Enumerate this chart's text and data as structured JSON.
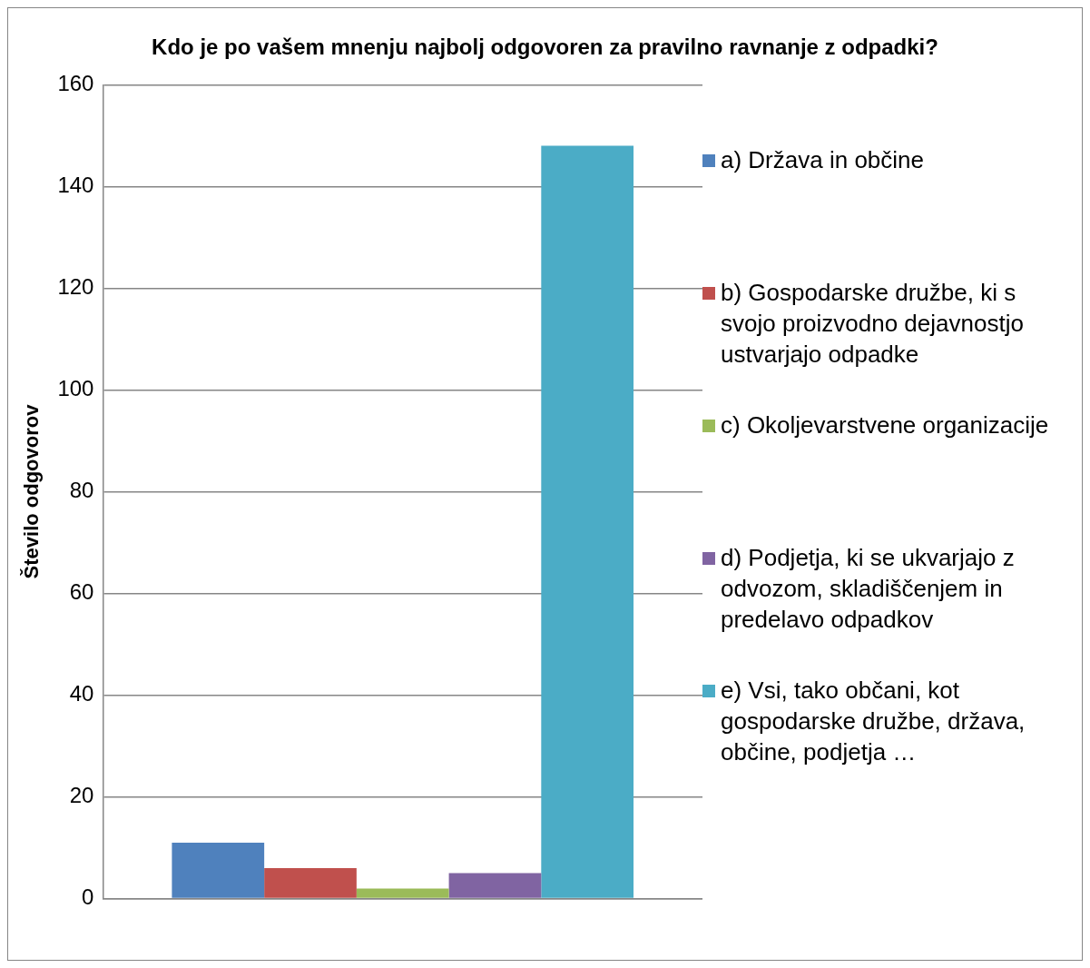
{
  "chart_data": {
    "type": "bar",
    "title": "Kdo je po vašem mnenju najbolj odgovoren za pravilno ravnanje z odpadki?",
    "ylabel": "Število odgovorov",
    "categories": [
      null
    ],
    "series": [
      {
        "name": "a) Država in občine",
        "color": "#4f81bd",
        "values": [
          11
        ]
      },
      {
        "name": "b) Gospodarske družbe, ki s svojo proizvodno dejavnostjo ustvarjajo odpadke",
        "color": "#c0504d",
        "values": [
          6
        ]
      },
      {
        "name": "c) Okoljevarstvene organizacije",
        "color": "#9bbb59",
        "values": [
          2
        ]
      },
      {
        "name": "d) Podjetja, ki se ukvarjajo z odvozom, skladiščenjem in predelavo odpadkov",
        "color": "#8064a2",
        "values": [
          5
        ]
      },
      {
        "name": "e) Vsi, tako občani, kot gospodarske družbe, država, občine, podjetja …",
        "color": "#4bacc6",
        "values": [
          148
        ]
      }
    ],
    "ylim": [
      0,
      160
    ],
    "yticks": [
      0,
      20,
      40,
      60,
      80,
      100,
      120,
      140,
      160
    ],
    "grid": "y",
    "legend": "right"
  }
}
